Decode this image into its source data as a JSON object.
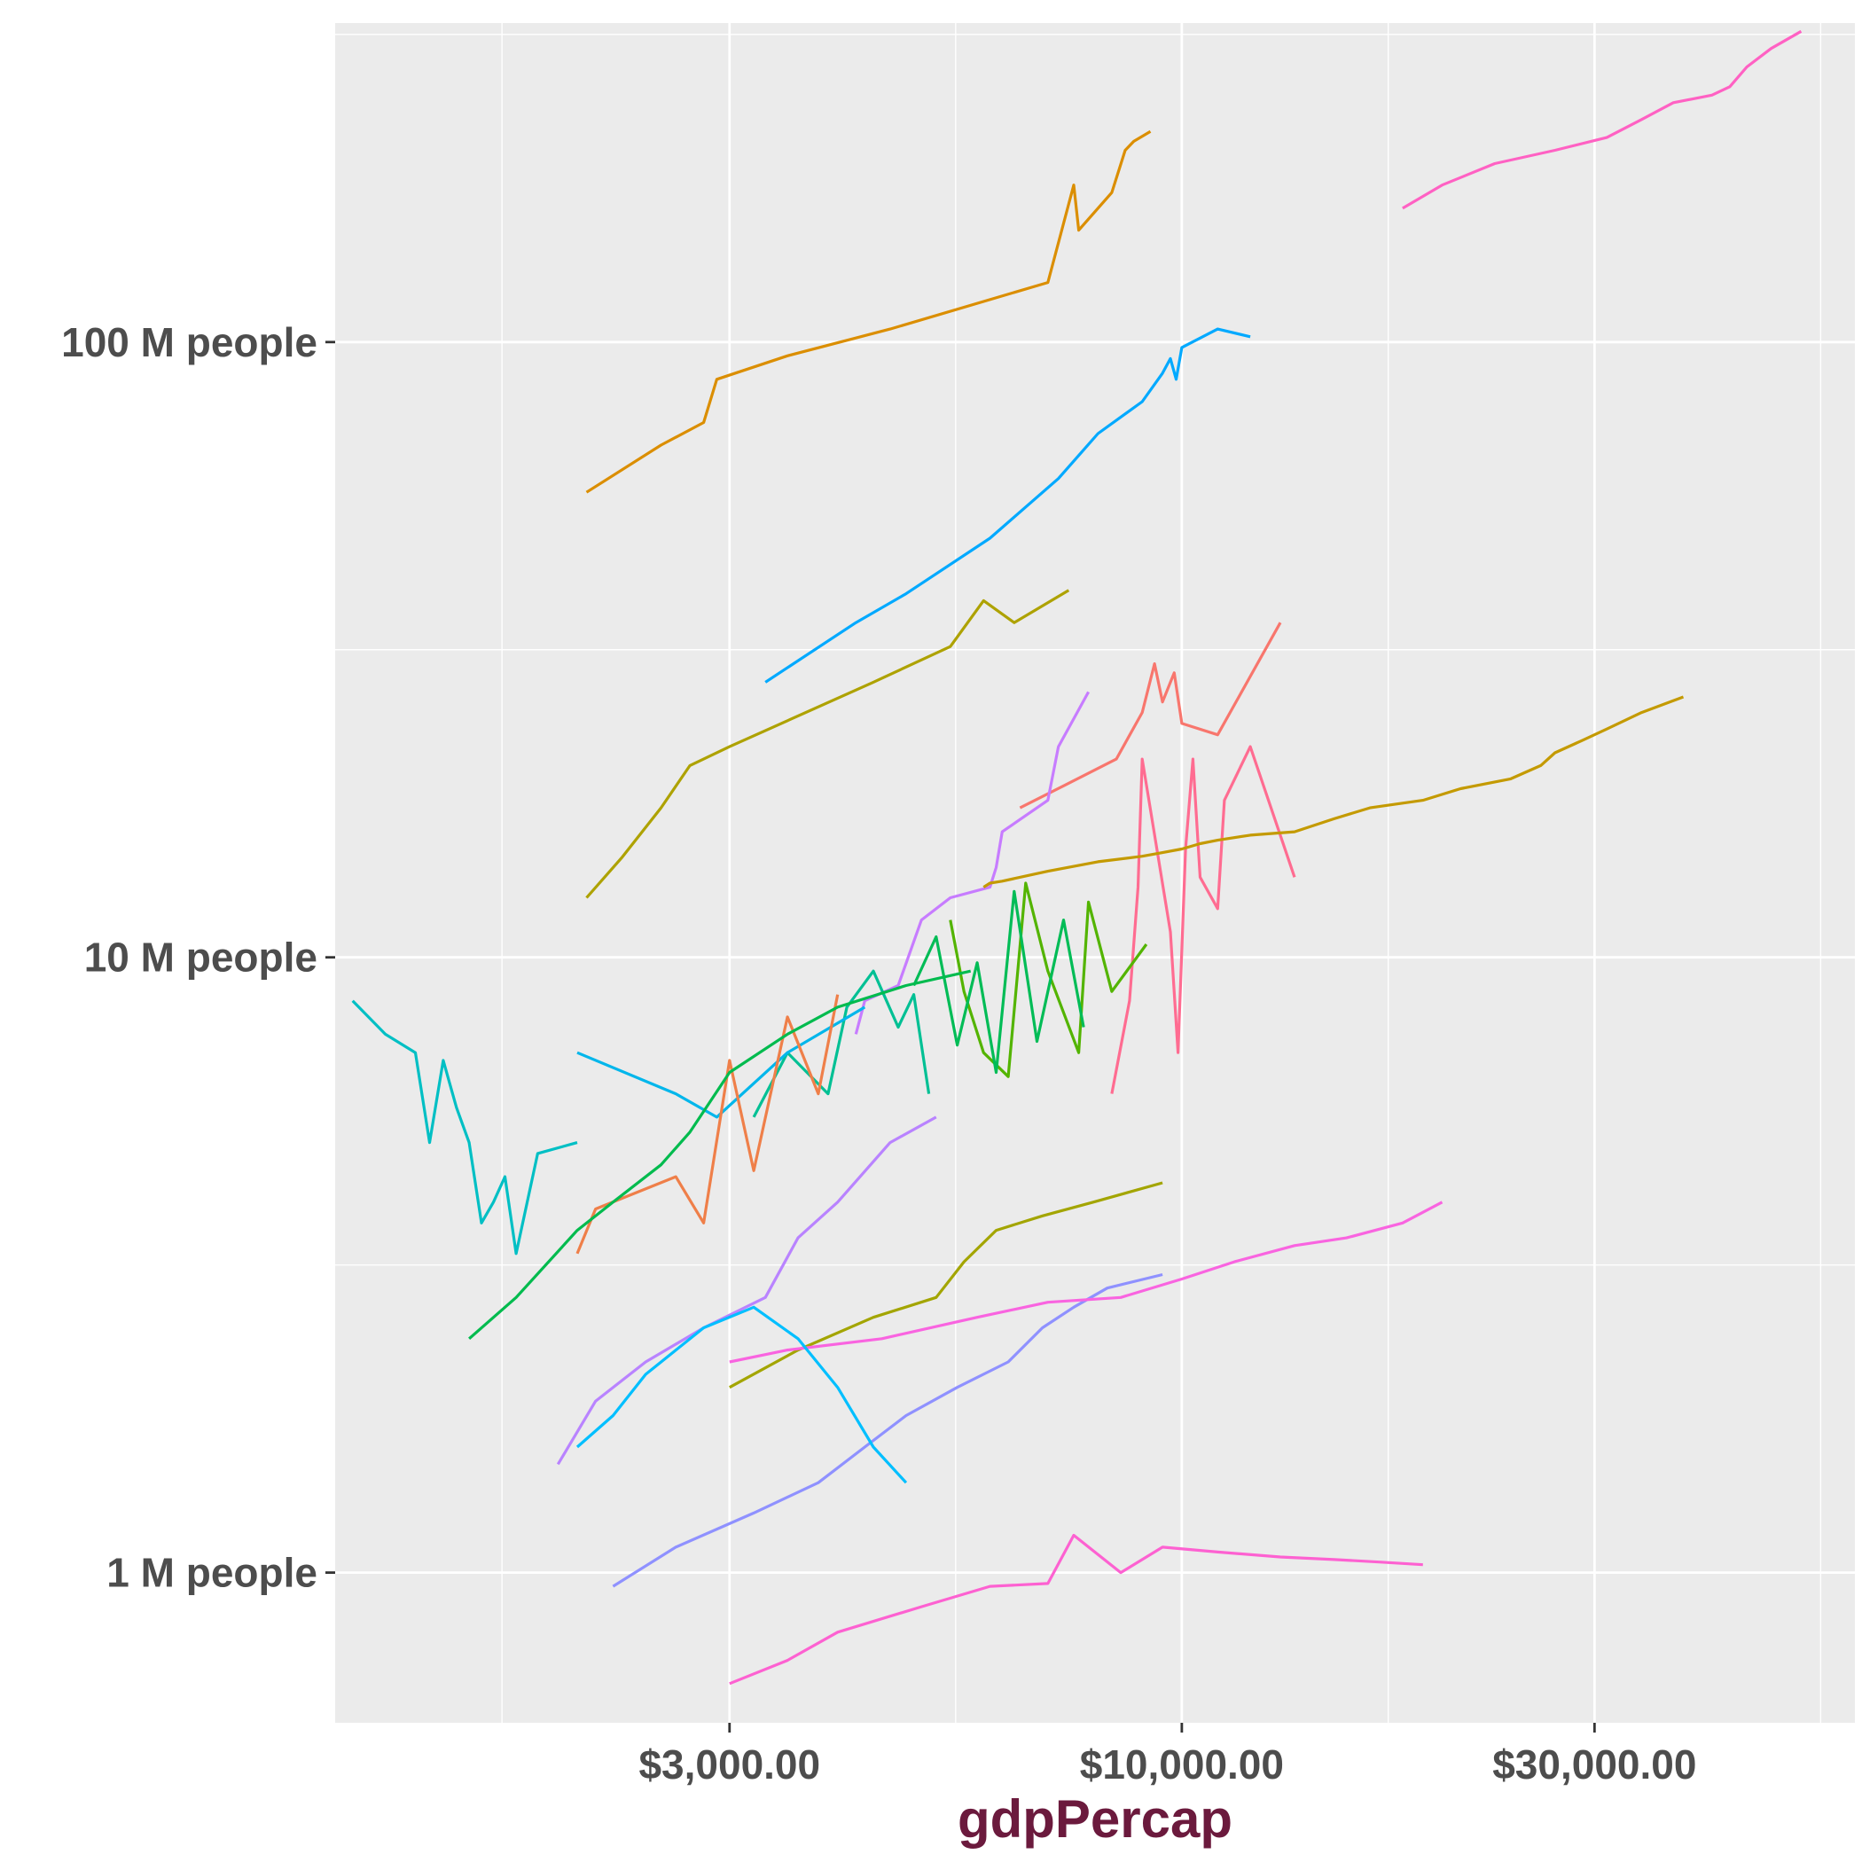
{
  "chart_data": {
    "type": "line",
    "title": "",
    "xlabel": "gdpPercap",
    "ylabel": "",
    "x_scale": "log10",
    "y_scale": "log10",
    "xlim": [
      1050,
      60000
    ],
    "ylim": [
      570000,
      330000000
    ],
    "x_ticks": [
      {
        "value": 3000,
        "label": "$3,000.00"
      },
      {
        "value": 10000,
        "label": "$10,000.00"
      },
      {
        "value": 30000,
        "label": "$30,000.00"
      }
    ],
    "x_minor_ticks": [
      1637,
      5477,
      17321,
      54772
    ],
    "y_ticks": [
      {
        "value": 1000000,
        "label": "1 M people"
      },
      {
        "value": 10000000,
        "label": "10 M people"
      },
      {
        "value": 100000000,
        "label": "100 M people"
      }
    ],
    "y_minor_ticks": [
      3162278,
      31622777,
      316227766
    ],
    "grid": true,
    "legend": "none",
    "panel_background": "#ebebeb",
    "grid_color": "#ffffff",
    "xlabel_color": "#6b1a3d",
    "series": [
      {
        "color": "#FF61C3",
        "x": [
          18000,
          20000,
          23000,
          27000,
          31000,
          34000,
          37000,
          41000,
          43000,
          45000,
          48000,
          52000
        ],
        "y": [
          165000000,
          180000000,
          195000000,
          205000000,
          215000000,
          230000000,
          245000000,
          252000000,
          260000000,
          280000000,
          300000000,
          320000000
        ]
      },
      {
        "color": "#DB8E00",
        "x": [
          2050,
          2500,
          2800,
          2900,
          3500,
          4600,
          7000,
          7500,
          7600,
          8300,
          8600,
          8800,
          9200
        ],
        "y": [
          57000000,
          68000000,
          74000000,
          87000000,
          95000000,
          105000000,
          125000000,
          180000000,
          152000000,
          175000000,
          205000000,
          212000000,
          220000000
        ]
      },
      {
        "color": "#00A9FF",
        "x": [
          3300,
          4200,
          4800,
          6000,
          7200,
          8000,
          9000,
          9500,
          9700,
          9850,
          10000,
          11000,
          12000
        ],
        "y": [
          28000000,
          35000000,
          39000000,
          48000000,
          60000000,
          71000000,
          80000000,
          89000000,
          94000000,
          87000000,
          98000000,
          105000000,
          102000000
        ]
      },
      {
        "color": "#AEA200",
        "x": [
          2050,
          2250,
          2500,
          2700,
          3000,
          4400,
          5400,
          5900,
          6400,
          7400
        ],
        "y": [
          12500000,
          14500000,
          17500000,
          20500000,
          22000000,
          28000000,
          32000000,
          38000000,
          35000000,
          39500000
        ]
      },
      {
        "color": "#F8766D",
        "x": [
          6500,
          7300,
          8400,
          9000,
          9300,
          9500,
          9800,
          10000,
          11000,
          13000
        ],
        "y": [
          17500000,
          19000000,
          21000000,
          25000000,
          30000000,
          26000000,
          29000000,
          24000000,
          23000000,
          35000000
        ]
      },
      {
        "color": "#C77CFF",
        "x": [
          4200,
          4300,
          4700,
          5000,
          5400,
          6000,
          6100,
          6200,
          7000,
          7200,
          7800
        ],
        "y": [
          7500000,
          8500000,
          9000000,
          11500000,
          12500000,
          13000000,
          14000000,
          16000000,
          18000000,
          22000000,
          27000000
        ]
      },
      {
        "color": "#FF6C91",
        "x": [
          8300,
          8700,
          8900,
          9000,
          9700,
          9900,
          10100,
          10300,
          10500,
          11000,
          11200,
          12000,
          13500
        ],
        "y": [
          6000000,
          8500000,
          13000000,
          21000000,
          11000000,
          7000000,
          15000000,
          21000000,
          13500000,
          12000000,
          18000000,
          22000000,
          13500000
        ]
      },
      {
        "color": "#C49A00",
        "x": [
          5900,
          6000,
          6200,
          7000,
          8000,
          9000,
          9500,
          10000,
          10500,
          11000,
          12000,
          13500,
          15000,
          16500,
          19000,
          21000,
          24000,
          26000,
          27000,
          29000,
          31000,
          34000,
          38000
        ],
        "y": [
          13000000,
          13200000,
          13300000,
          13800000,
          14300000,
          14600000,
          14800000,
          15000000,
          15300000,
          15500000,
          15800000,
          16000000,
          16800000,
          17500000,
          18000000,
          18800000,
          19500000,
          20500000,
          21500000,
          22500000,
          23500000,
          25000000,
          26500000
        ]
      },
      {
        "color": "#53B400",
        "x": [
          5400,
          5600,
          5900,
          6300,
          6600,
          7000,
          7600,
          7800,
          8300,
          9100
        ],
        "y": [
          11500000,
          8800000,
          7000000,
          6400000,
          13200000,
          9500000,
          7000000,
          12300000,
          8800000,
          10500000
        ]
      },
      {
        "color": "#00BC56",
        "x": [
          4900,
          5200,
          5500,
          5800,
          6100,
          6400,
          6800,
          7300,
          7700
        ],
        "y": [
          9000000,
          10800000,
          7200000,
          9800000,
          6500000,
          12800000,
          7300000,
          11500000,
          7700000
        ]
      },
      {
        "color": "#00C094",
        "x": [
          3200,
          3500,
          3900,
          4100,
          4400,
          4700,
          4900,
          5100
        ],
        "y": [
          5500000,
          7000000,
          6000000,
          8300000,
          9500000,
          7700000,
          8700000,
          6000000
        ]
      },
      {
        "color": "#00B6EB",
        "x": [
          2000,
          2600,
          2900,
          3500,
          4300
        ],
        "y": [
          7000000,
          6000000,
          5500000,
          7000000,
          8300000
        ]
      },
      {
        "color": "#EF7F49",
        "x": [
          2000,
          2100,
          2600,
          2800,
          3000,
          3200,
          3500,
          3800,
          4000
        ],
        "y": [
          3300000,
          3900000,
          4400000,
          3700000,
          6800000,
          4500000,
          8000000,
          6000000,
          8700000
        ]
      },
      {
        "color": "#00BB4E",
        "x": [
          1500,
          1700,
          2000,
          2200,
          2500,
          2700,
          3000,
          3500,
          4000,
          4800,
          5700
        ],
        "y": [
          2400000,
          2800000,
          3600000,
          4000000,
          4600000,
          5200000,
          6500000,
          7500000,
          8300000,
          9000000,
          9500000
        ]
      },
      {
        "color": "#00BFC4",
        "x": [
          1100,
          1200,
          1300,
          1350,
          1400,
          1450,
          1500,
          1550,
          1600,
          1650,
          1700,
          1800,
          2000
        ],
        "y": [
          8500000,
          7500000,
          7000000,
          5000000,
          6800000,
          5700000,
          5000000,
          3700000,
          4000000,
          4400000,
          3300000,
          4800000,
          5000000
        ]
      },
      {
        "color": "#A3A500",
        "x": [
          3000,
          3600,
          4400,
          5200,
          5600,
          6100,
          6900,
          7900,
          9500
        ],
        "y": [
          2000000,
          2300000,
          2600000,
          2800000,
          3200000,
          3600000,
          3800000,
          4000000,
          4300000
        ]
      },
      {
        "color": "#8F91FF",
        "x": [
          2200,
          2600,
          3200,
          3800,
          4300,
          4800,
          5500,
          6300,
          6900,
          7500,
          8200,
          9500
        ],
        "y": [
          950000,
          1100000,
          1250000,
          1400000,
          1600000,
          1800000,
          2000000,
          2200000,
          2500000,
          2700000,
          2900000,
          3050000
        ]
      },
      {
        "color": "#F964E0",
        "x": [
          3000,
          3500,
          4500,
          5800,
          7000,
          8500,
          10000,
          11500,
          13500,
          15500,
          18000,
          20000
        ],
        "y": [
          2200000,
          2300000,
          2400000,
          2600000,
          2750000,
          2800000,
          3000000,
          3200000,
          3400000,
          3500000,
          3700000,
          4000000
        ]
      },
      {
        "color": "#B983FF",
        "x": [
          1900,
          2100,
          2400,
          2800,
          3300,
          3600,
          4000,
          4600,
          5200
        ],
        "y": [
          1500000,
          1900000,
          2200000,
          2500000,
          2800000,
          3500000,
          4000000,
          5000000,
          5500000
        ]
      },
      {
        "color": "#00BFFF",
        "x": [
          2000,
          2200,
          2400,
          2800,
          3200,
          3600,
          4000,
          4400,
          4800
        ],
        "y": [
          1600000,
          1800000,
          2100000,
          2500000,
          2700000,
          2400000,
          2000000,
          1600000,
          1400000
        ]
      },
      {
        "color": "#FD61D1",
        "x": [
          3000,
          3500,
          4000,
          5000,
          6000,
          7000,
          7500,
          8500,
          9500,
          11000,
          13000,
          15000,
          17000,
          19000
        ],
        "y": [
          660000,
          720000,
          800000,
          880000,
          950000,
          960000,
          1150000,
          1000000,
          1100000,
          1080000,
          1060000,
          1050000,
          1040000,
          1030000
        ]
      }
    ]
  }
}
